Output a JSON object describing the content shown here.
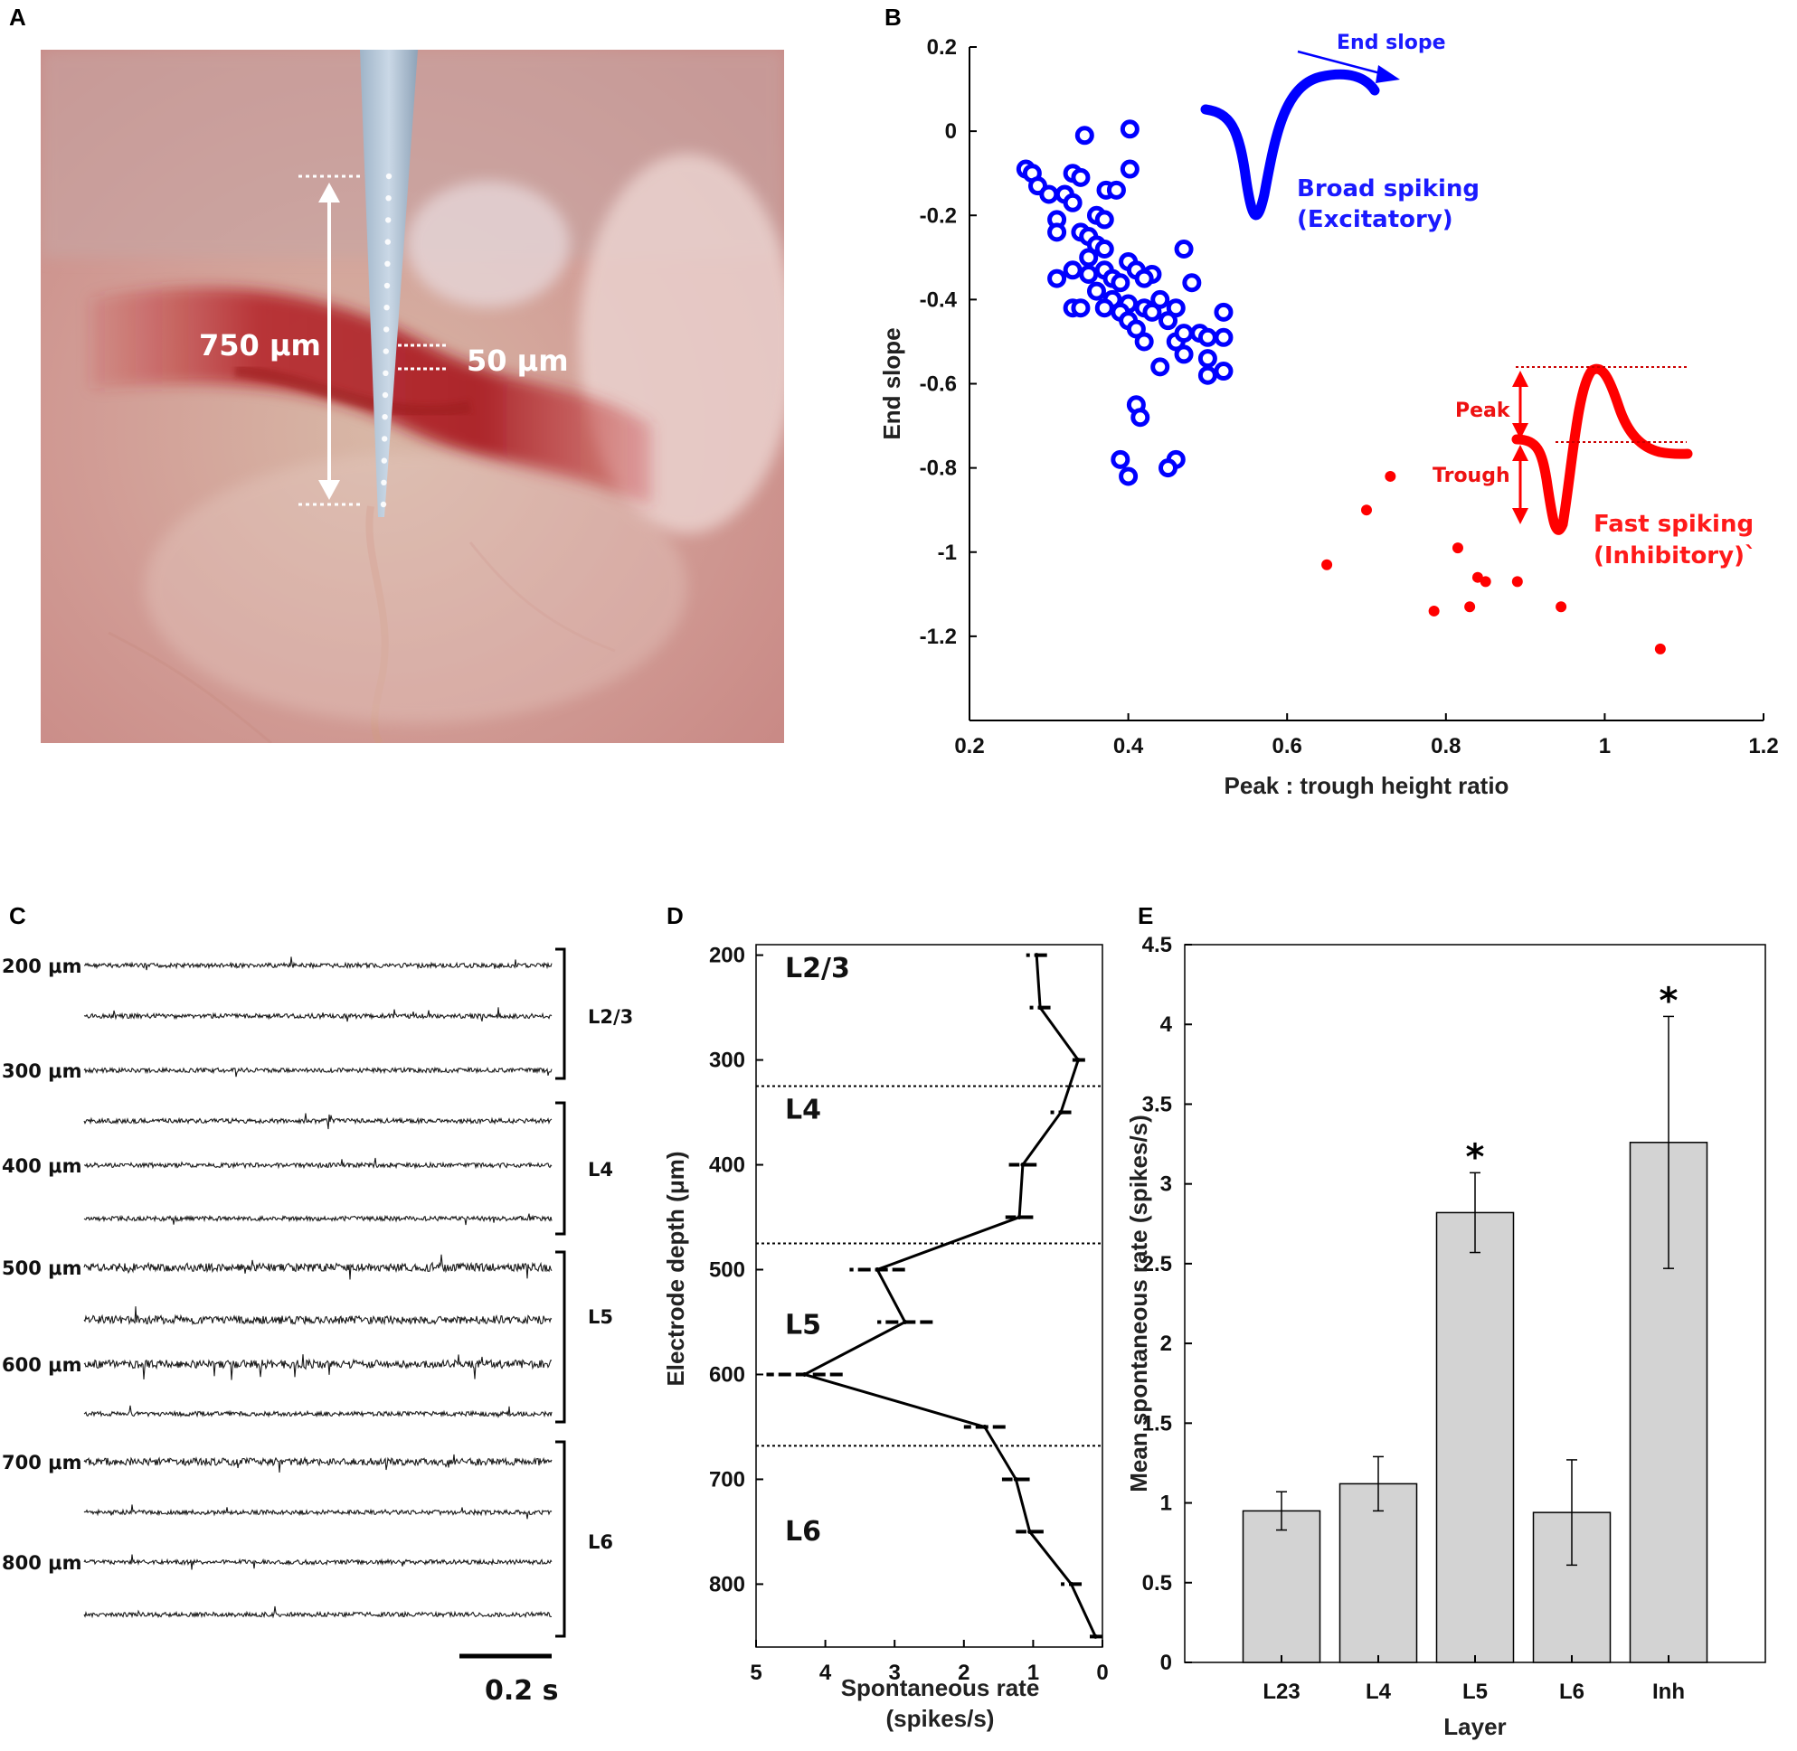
{
  "colors": {
    "excitatory": "#0000ff",
    "inhibitory": "#ff0000",
    "bar_fill": "#d3d3d3",
    "axis": "#000000"
  },
  "panels": {
    "A": {
      "letter": "A",
      "depth_span_label": "750 μm",
      "spacing_label": "50 μm"
    },
    "B": {
      "letter": "B",
      "waveform_labels": {
        "end_slope": "End slope",
        "broad_line1": "Broad spiking",
        "broad_line2": "(Excitatory)",
        "peak": "Peak",
        "trough": "Trough",
        "fast_line1": "Fast spiking",
        "fast_line2": "(Inhibitory)`"
      }
    },
    "C": {
      "letter": "C",
      "depth_labels": [
        "200 μm",
        "300 μm",
        "400 μm",
        "500 μm",
        "600 μm",
        "700 μm",
        "800 μm"
      ],
      "layer_labels": [
        "L2/3",
        "L4",
        "L5",
        "L6"
      ],
      "scalebar_label": "0.2 s"
    },
    "D": {
      "letter": "D",
      "layer_labels": [
        "L2/3",
        "L4",
        "L5",
        "L6"
      ]
    },
    "E": {
      "letter": "E"
    }
  },
  "chart_data": [
    {
      "id": "B",
      "type": "scatter",
      "title": "",
      "xlabel": "Peak : trough height ratio",
      "ylabel": "End slope",
      "xlim": [
        0.2,
        1.2
      ],
      "ylim": [
        -1.4,
        0.2
      ],
      "xticks": [
        0.2,
        0.4,
        0.6,
        0.8,
        1,
        1.2
      ],
      "yticks": [
        0.2,
        0,
        -0.2,
        -0.4,
        -0.6,
        -0.8,
        -1,
        -1.2
      ],
      "xtick_labels": [
        "0.2",
        "0.4",
        "0.6",
        "0.8",
        "1",
        "1.2"
      ],
      "ytick_labels": [
        "0.2",
        "0",
        "-0.2",
        "-0.4",
        "-0.6",
        "-0.8",
        "-1",
        "-1.2"
      ],
      "series": [
        {
          "name": "Broad spiking (Excitatory)",
          "marker": "circle-open",
          "color": "#0000ff",
          "points": [
            [
              0.345,
              -0.01
            ],
            [
              0.402,
              0.005
            ],
            [
              0.271,
              -0.09
            ],
            [
              0.279,
              -0.1
            ],
            [
              0.286,
              -0.13
            ],
            [
              0.33,
              -0.1
            ],
            [
              0.34,
              -0.11
            ],
            [
              0.372,
              -0.14
            ],
            [
              0.385,
              -0.14
            ],
            [
              0.402,
              -0.09
            ],
            [
              0.3,
              -0.15
            ],
            [
              0.32,
              -0.15
            ],
            [
              0.33,
              -0.17
            ],
            [
              0.31,
              -0.21
            ],
            [
              0.36,
              -0.2
            ],
            [
              0.37,
              -0.21
            ],
            [
              0.34,
              -0.24
            ],
            [
              0.35,
              -0.25
            ],
            [
              0.31,
              -0.24
            ],
            [
              0.36,
              -0.27
            ],
            [
              0.37,
              -0.28
            ],
            [
              0.35,
              -0.3
            ],
            [
              0.33,
              -0.33
            ],
            [
              0.35,
              -0.34
            ],
            [
              0.37,
              -0.33
            ],
            [
              0.38,
              -0.35
            ],
            [
              0.39,
              -0.36
            ],
            [
              0.31,
              -0.35
            ],
            [
              0.4,
              -0.31
            ],
            [
              0.41,
              -0.33
            ],
            [
              0.43,
              -0.34
            ],
            [
              0.42,
              -0.35
            ],
            [
              0.47,
              -0.28
            ],
            [
              0.48,
              -0.36
            ],
            [
              0.36,
              -0.38
            ],
            [
              0.38,
              -0.4
            ],
            [
              0.4,
              -0.41
            ],
            [
              0.39,
              -0.43
            ],
            [
              0.33,
              -0.42
            ],
            [
              0.34,
              -0.42
            ],
            [
              0.37,
              -0.42
            ],
            [
              0.42,
              -0.42
            ],
            [
              0.44,
              -0.4
            ],
            [
              0.43,
              -0.43
            ],
            [
              0.46,
              -0.42
            ],
            [
              0.45,
              -0.45
            ],
            [
              0.4,
              -0.45
            ],
            [
              0.41,
              -0.47
            ],
            [
              0.42,
              -0.5
            ],
            [
              0.46,
              -0.5
            ],
            [
              0.47,
              -0.48
            ],
            [
              0.49,
              -0.48
            ],
            [
              0.5,
              -0.49
            ],
            [
              0.47,
              -0.53
            ],
            [
              0.52,
              -0.43
            ],
            [
              0.52,
              -0.49
            ],
            [
              0.44,
              -0.56
            ],
            [
              0.5,
              -0.54
            ],
            [
              0.52,
              -0.57
            ],
            [
              0.5,
              -0.58
            ],
            [
              0.41,
              -0.65
            ],
            [
              0.415,
              -0.68
            ],
            [
              0.39,
              -0.78
            ],
            [
              0.4,
              -0.82
            ],
            [
              0.46,
              -0.78
            ],
            [
              0.45,
              -0.8
            ]
          ]
        },
        {
          "name": "Fast spiking (Inhibitory)",
          "marker": "dot",
          "color": "#ff0000",
          "points": [
            [
              0.73,
              -0.82
            ],
            [
              0.7,
              -0.9
            ],
            [
              0.65,
              -1.03
            ],
            [
              0.815,
              -0.99
            ],
            [
              0.84,
              -1.06
            ],
            [
              0.85,
              -1.07
            ],
            [
              0.89,
              -1.07
            ],
            [
              0.83,
              -1.13
            ],
            [
              0.785,
              -1.14
            ],
            [
              0.945,
              -1.13
            ],
            [
              1.07,
              -1.23
            ]
          ]
        }
      ]
    },
    {
      "id": "D",
      "type": "line",
      "title": "",
      "xlabel": "Spontaneous rate (spikes/s)",
      "ylabel": "Electrode depth (μm)",
      "x_reversed": true,
      "y_reversed": true,
      "xlim": [
        0,
        5
      ],
      "ylim": [
        190,
        860
      ],
      "xticks": [
        5,
        4,
        3,
        2,
        1,
        0
      ],
      "yticks": [
        200,
        300,
        400,
        500,
        600,
        700,
        800
      ],
      "xtick_labels": [
        "5",
        "4",
        "3",
        "2",
        "1",
        "0"
      ],
      "ytick_labels": [
        "200",
        "300",
        "400",
        "500",
        "600",
        "700",
        "800"
      ],
      "layer_boundaries": [
        325,
        475,
        668
      ],
      "series": [
        {
          "name": "Spontaneous rate by depth",
          "depth": [
            200,
            250,
            300,
            350,
            400,
            450,
            500,
            550,
            600,
            650,
            700,
            750,
            800,
            850
          ],
          "rate": [
            0.95,
            0.9,
            0.35,
            0.6,
            1.15,
            1.2,
            3.25,
            2.85,
            4.3,
            1.7,
            1.25,
            1.05,
            0.45,
            0.1
          ],
          "sem": [
            0.15,
            0.15,
            0.1,
            0.15,
            0.2,
            0.2,
            0.4,
            0.4,
            0.55,
            0.3,
            0.2,
            0.2,
            0.15,
            0.1
          ]
        }
      ]
    },
    {
      "id": "E",
      "type": "bar",
      "title": "",
      "xlabel": "Layer",
      "ylabel": "Mean spontaneous rate (spikes/s)",
      "ylim": [
        0,
        4.5
      ],
      "yticks": [
        0,
        0.5,
        1,
        1.5,
        2,
        2.5,
        3,
        3.5,
        4,
        4.5
      ],
      "ytick_labels": [
        "0",
        "0.5",
        "1",
        "1.5",
        "2",
        "2.5",
        "3",
        "3.5",
        "4",
        "4.5"
      ],
      "categories": [
        "L23",
        "L4",
        "L5",
        "L6",
        "Inh"
      ],
      "values": [
        0.95,
        1.12,
        2.82,
        0.94,
        3.26
      ],
      "error_low": [
        0.83,
        0.95,
        2.57,
        0.61,
        2.47
      ],
      "error_high": [
        1.07,
        1.29,
        3.07,
        1.27,
        4.05
      ],
      "significance": [
        "",
        "",
        "*",
        "",
        "*"
      ]
    }
  ]
}
